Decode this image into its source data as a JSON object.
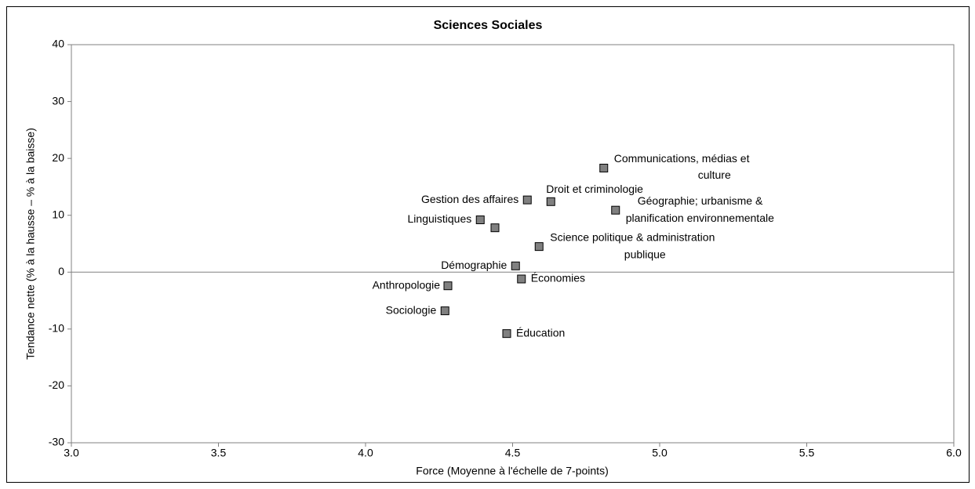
{
  "chart_data": {
    "type": "scatter",
    "title": "Sciences Sociales",
    "x_label": "Force (Moyenne à l'échelle de 7-points)",
    "y_label": "Tendance nette (% à la hausse – % à la baisse)",
    "x": [
      4.81,
      4.55,
      4.63,
      4.85,
      4.39,
      4.44,
      4.59,
      4.51,
      4.53,
      4.28,
      4.27,
      4.48
    ],
    "values": [
      18.3,
      12.7,
      12.4,
      10.9,
      9.2,
      7.8,
      4.5,
      1.1,
      -1.2,
      -2.4,
      -6.8,
      -10.8
    ],
    "point_labels": [
      [
        "Communications, médias et",
        "culture"
      ],
      [
        "Gestion des affaires"
      ],
      [
        "Droit et criminologie"
      ],
      [
        "Géographie; urbanisme &",
        "planification environnementale"
      ],
      [
        "Linguistiques"
      ],
      null,
      [
        "Science politique & administration",
        "publique"
      ],
      [
        "Démographie"
      ],
      [
        "Économies"
      ],
      [
        "Anthropologie"
      ],
      [
        "Sociologie"
      ],
      [
        "Éducation"
      ]
    ],
    "color": "#808080",
    "xlim": [
      3.0,
      6.0
    ],
    "xticks": [
      {
        "value": 3.0,
        "label": "3.0"
      },
      3.5,
      {
        "value": 4.0,
        "label": "4.0"
      },
      4.5,
      {
        "value": 5.0,
        "label": "5.0"
      },
      5.5,
      {
        "value": 6.0,
        "label": "6.0"
      }
    ],
    "ylim": [
      -30,
      40
    ],
    "yticks": [
      -30,
      -20,
      -10,
      0,
      10,
      20,
      30,
      40
    ]
  }
}
